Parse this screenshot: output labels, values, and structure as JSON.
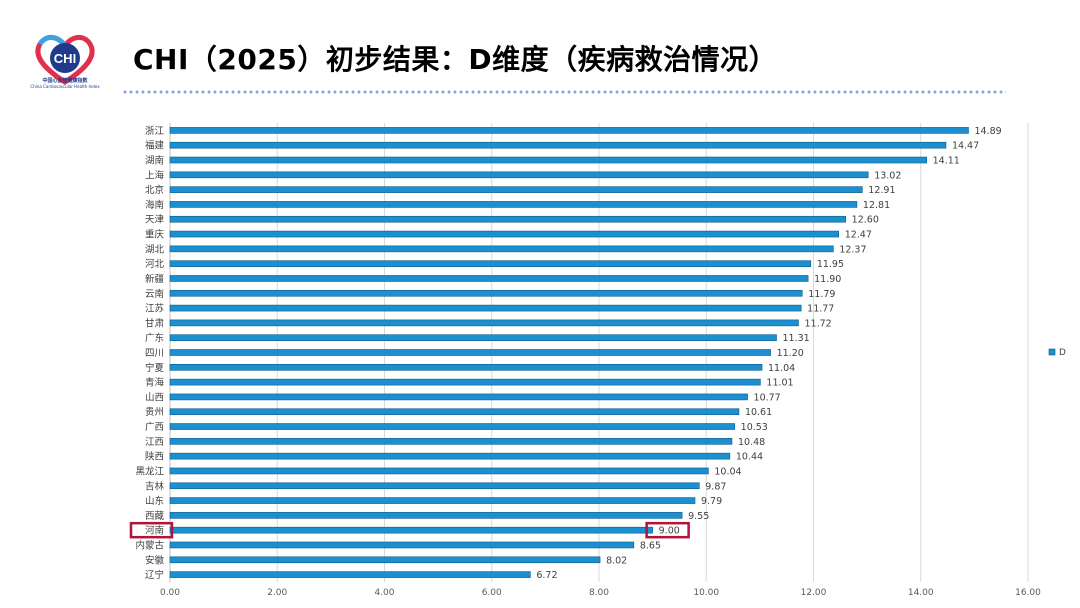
{
  "header": {
    "title": "CHI（2025）初步结果：D维度（疾病救治情况）",
    "logo_text": "CHI",
    "logo_caption": "中国心血管健康指数",
    "logo_caption_en": "China Cardiovascular Health Index"
  },
  "colors": {
    "bar": "#1b8fcf",
    "bar_stroke": "#0e5d8a",
    "highlight": "#b0143a",
    "grid": "#d9d9d9",
    "logo_blue": "#1f3b8c",
    "logo_red": "#e0304e",
    "logo_lightblue": "#3aa3e3"
  },
  "chart_data": {
    "type": "bar",
    "orientation": "horizontal",
    "categories": [
      "浙江",
      "福建",
      "湖南",
      "上海",
      "北京",
      "海南",
      "天津",
      "重庆",
      "湖北",
      "河北",
      "新疆",
      "云南",
      "江苏",
      "甘肃",
      "广东",
      "四川",
      "宁夏",
      "青海",
      "山西",
      "贵州",
      "广西",
      "江西",
      "陕西",
      "黑龙江",
      "吉林",
      "山东",
      "西藏",
      "河南",
      "内蒙古",
      "安徽",
      "辽宁"
    ],
    "series": [
      {
        "name": "D",
        "values": [
          14.89,
          14.47,
          14.11,
          13.02,
          12.91,
          12.81,
          12.6,
          12.47,
          12.37,
          11.95,
          11.9,
          11.79,
          11.77,
          11.72,
          11.31,
          11.2,
          11.04,
          11.01,
          10.77,
          10.61,
          10.53,
          10.48,
          10.44,
          10.04,
          9.87,
          9.79,
          9.55,
          9.0,
          8.65,
          8.02,
          6.72
        ]
      }
    ],
    "value_labels": [
      "14.89",
      "14.47",
      "14.11",
      "13.02",
      "12.91",
      "12.81",
      "12.60",
      "12.47",
      "12.37",
      "11.95",
      "11.90",
      "11.79",
      "11.77",
      "11.72",
      "11.31",
      "11.20",
      "11.04",
      "11.01",
      "10.77",
      "10.61",
      "10.53",
      "10.48",
      "10.44",
      "10.04",
      "9.87",
      "9.79",
      "9.55",
      "9.00",
      "8.65",
      "8.02",
      "6.72"
    ],
    "xlim": [
      0,
      16
    ],
    "x_ticks": [
      "0.00",
      "2.00",
      "4.00",
      "6.00",
      "8.00",
      "10.00",
      "12.00",
      "14.00",
      "16.00"
    ],
    "grid": true,
    "legend": {
      "position": "right",
      "entries": [
        "D"
      ]
    },
    "highlighted_category": "河南"
  }
}
